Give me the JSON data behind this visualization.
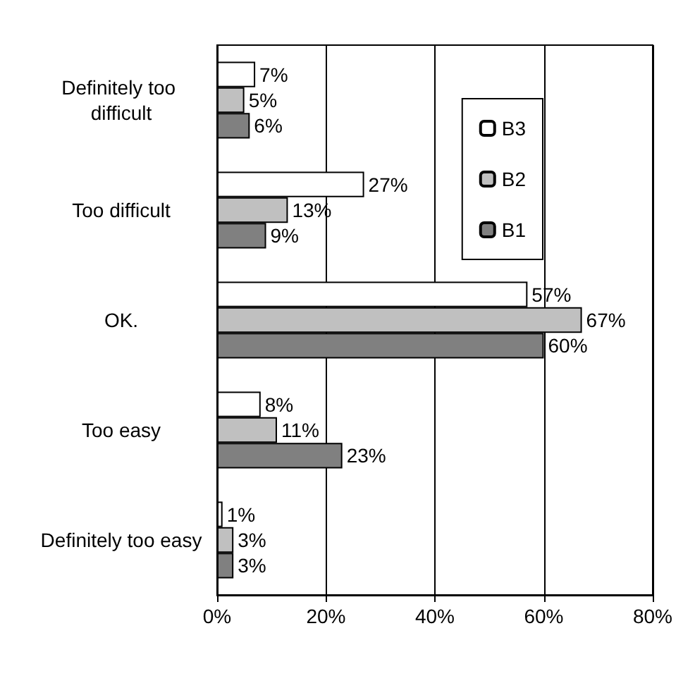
{
  "chart_data": {
    "type": "bar",
    "orientation": "horizontal",
    "categories": [
      "Definitely too difficult",
      "Too difficult",
      "OK.",
      "Too easy",
      "Definitely too easy"
    ],
    "series": [
      {
        "name": "B3",
        "color": "#ffffff",
        "values": [
          7,
          27,
          57,
          8,
          1
        ],
        "value_labels": [
          "7%",
          "27%",
          "57%",
          "8%",
          "1%"
        ]
      },
      {
        "name": "B2",
        "color": "#c0c0c0",
        "values": [
          5,
          13,
          67,
          11,
          3
        ],
        "value_labels": [
          "5%",
          "13%",
          "67%",
          "11%",
          "3%"
        ]
      },
      {
        "name": "B1",
        "color": "#808080",
        "values": [
          6,
          9,
          60,
          23,
          3
        ],
        "value_labels": [
          "6%",
          "9%",
          "60%",
          "23%",
          "3%"
        ]
      }
    ],
    "xlim": [
      0,
      80
    ],
    "xticks": [
      {
        "value": 0,
        "label": "0%"
      },
      {
        "value": 20,
        "label": "20%"
      },
      {
        "value": 40,
        "label": "40%"
      },
      {
        "value": 60,
        "label": "60%"
      },
      {
        "value": 80,
        "label": "80%"
      }
    ],
    "grid": "x",
    "legend": "top right"
  }
}
